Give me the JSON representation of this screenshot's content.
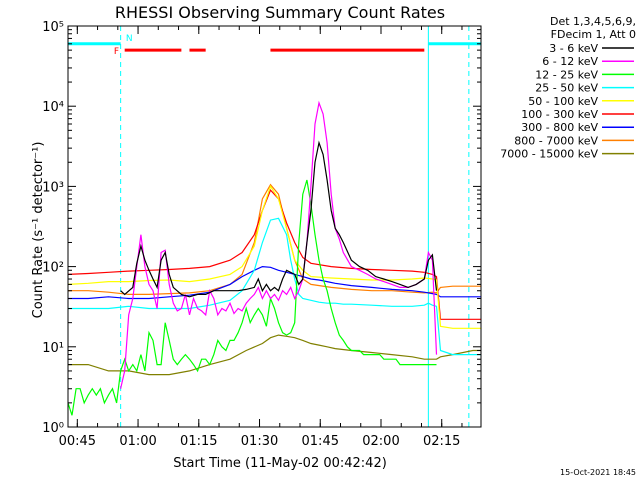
{
  "chart_data": {
    "type": "line",
    "title": "RHESSI Observing Summary Count Rates",
    "xlabel": "Start Time (11-May-02 00:42:42)",
    "ylabel": "Count Rate (s⁻¹ detector⁻¹)",
    "x_unit": "minutes since 00:42:42",
    "xlim": [
      0,
      102
    ],
    "ylim": [
      1,
      100000
    ],
    "yscale": "log",
    "grid": false,
    "legend_position": "right, outside plot",
    "legend_header": [
      "Det 1,3,4,5,6,9,",
      "FDecim 1, Att 0"
    ],
    "x_ticks": [
      {
        "x": 2.3,
        "label": "00:45"
      },
      {
        "x": 17.3,
        "label": "01:00"
      },
      {
        "x": 32.3,
        "label": "01:15"
      },
      {
        "x": 47.3,
        "label": "01:30"
      },
      {
        "x": 62.3,
        "label": "01:45"
      },
      {
        "x": 77.3,
        "label": "02:00"
      },
      {
        "x": 92.3,
        "label": "02:15"
      }
    ],
    "y_ticks": [
      {
        "y": 1,
        "label": "10⁰"
      },
      {
        "y": 10,
        "label": "10¹"
      },
      {
        "y": 100,
        "label": "10²"
      },
      {
        "y": 1000,
        "label": "10³"
      },
      {
        "y": 10000,
        "label": "10⁴"
      },
      {
        "y": 100000,
        "label": "10⁵"
      }
    ],
    "series": [
      {
        "name": "3 - 6 keV",
        "color": "#000000",
        "x": [
          13,
          14,
          16,
          17,
          18,
          19,
          20,
          21,
          22,
          23,
          24,
          25,
          26,
          28,
          30,
          32,
          34,
          36,
          38,
          40,
          42,
          44,
          46,
          47,
          48,
          49,
          50,
          51,
          52,
          53,
          54,
          56,
          57,
          58,
          59,
          60,
          61,
          62,
          63,
          64,
          65,
          66,
          67,
          68,
          70,
          72,
          74,
          76,
          78,
          80,
          82,
          84,
          86,
          88,
          89,
          90,
          91
        ],
        "y": [
          50,
          45,
          55,
          110,
          180,
          120,
          90,
          70,
          55,
          120,
          150,
          80,
          55,
          45,
          42,
          45,
          45,
          50,
          50,
          50,
          50,
          52,
          55,
          70,
          50,
          60,
          50,
          55,
          50,
          70,
          90,
          80,
          60,
          70,
          200,
          500,
          2000,
          3500,
          2500,
          1200,
          500,
          300,
          250,
          200,
          120,
          100,
          90,
          75,
          70,
          65,
          60,
          55,
          60,
          70,
          120,
          140,
          50
        ]
      },
      {
        "name": "6 - 12 keV",
        "color": "#ff00ff",
        "x": [
          13,
          14,
          15,
          16,
          17,
          18,
          19,
          20,
          21,
          22,
          23,
          24,
          25,
          26,
          27,
          28,
          29,
          30,
          31,
          32,
          33,
          34,
          35,
          36,
          37,
          38,
          39,
          40,
          41,
          42,
          43,
          44,
          45,
          46,
          47,
          48,
          49,
          50,
          51,
          52,
          53,
          54,
          55,
          56,
          57,
          58,
          59,
          60,
          61,
          62,
          63,
          64,
          65,
          66,
          67,
          68,
          70,
          72,
          74,
          76,
          78,
          80,
          82,
          84,
          86,
          88,
          89,
          90,
          91
        ],
        "y": [
          3,
          5,
          25,
          40,
          100,
          250,
          100,
          60,
          50,
          30,
          150,
          160,
          60,
          35,
          28,
          30,
          45,
          25,
          40,
          30,
          28,
          25,
          50,
          40,
          25,
          30,
          28,
          35,
          26,
          30,
          28,
          35,
          40,
          45,
          55,
          40,
          50,
          40,
          45,
          38,
          50,
          45,
          55,
          40,
          50,
          70,
          200,
          1000,
          6000,
          11000,
          8000,
          3500,
          800,
          300,
          220,
          150,
          100,
          90,
          80,
          70,
          65,
          60,
          55,
          55,
          60,
          70,
          150,
          120,
          8
        ]
      },
      {
        "name": "12 - 25 keV",
        "color": "#00ff00",
        "x": [
          0,
          1,
          2,
          3,
          4,
          5,
          6,
          7,
          8,
          9,
          10,
          11,
          12,
          13,
          14,
          15,
          16,
          17,
          18,
          19,
          20,
          21,
          22,
          23,
          24,
          25,
          26,
          27,
          28,
          29,
          30,
          31,
          32,
          33,
          34,
          35,
          36,
          37,
          38,
          39,
          40,
          41,
          42,
          43,
          44,
          45,
          46,
          47,
          48,
          49,
          50,
          51,
          52,
          53,
          54,
          55,
          56,
          57,
          58,
          59,
          60,
          61,
          62,
          63,
          64,
          65,
          66,
          67,
          68,
          69,
          70,
          71,
          72,
          73,
          74,
          75,
          76,
          77,
          78,
          79,
          80,
          81,
          82,
          83,
          84,
          85,
          86,
          87,
          88,
          89,
          90,
          91
        ],
        "y": [
          2,
          1.4,
          3,
          3,
          2,
          2.5,
          3,
          2.5,
          3,
          2,
          2.5,
          3,
          2,
          5,
          7,
          5,
          6,
          5,
          8,
          5,
          15,
          12,
          6,
          6,
          20,
          12,
          7,
          6,
          7,
          8,
          7,
          6,
          5,
          7,
          7,
          6,
          8,
          12,
          10,
          9,
          12,
          12,
          15,
          20,
          30,
          20,
          25,
          30,
          25,
          18,
          40,
          30,
          20,
          15,
          14,
          15,
          20,
          200,
          800,
          1200,
          600,
          250,
          120,
          70,
          50,
          30,
          20,
          14,
          12,
          10,
          9,
          9,
          9,
          8,
          8,
          8,
          8,
          8,
          7,
          7,
          7,
          7,
          6,
          6,
          6,
          6,
          6,
          6,
          6,
          6,
          6,
          6
        ]
      },
      {
        "name": "25 - 50 keV",
        "color": "#00ffff",
        "x": [
          0,
          5,
          10,
          15,
          20,
          25,
          30,
          35,
          40,
          43,
          46,
          48,
          50,
          52,
          54,
          55,
          56,
          57,
          58,
          60,
          62,
          64,
          66,
          68,
          70,
          75,
          80,
          85,
          88,
          89,
          90,
          91,
          92,
          95,
          100,
          102
        ],
        "y": [
          30,
          30,
          30,
          32,
          30,
          30,
          30,
          33,
          38,
          50,
          90,
          200,
          380,
          400,
          250,
          120,
          70,
          45,
          40,
          38,
          36,
          35,
          35,
          34,
          34,
          33,
          32,
          32,
          33,
          35,
          33,
          32,
          9,
          8,
          8,
          8
        ]
      },
      {
        "name": "50 - 100 keV",
        "color": "#ffff00",
        "x": [
          0,
          5,
          10,
          15,
          20,
          25,
          30,
          35,
          40,
          43,
          46,
          48,
          50,
          52,
          54,
          56,
          58,
          60,
          65,
          70,
          75,
          80,
          85,
          88,
          90,
          91,
          92,
          95,
          100,
          102
        ],
        "y": [
          60,
          62,
          65,
          65,
          67,
          68,
          65,
          70,
          80,
          100,
          180,
          500,
          1000,
          700,
          300,
          120,
          90,
          75,
          72,
          70,
          68,
          68,
          70,
          72,
          70,
          68,
          18,
          17,
          17,
          17
        ]
      },
      {
        "name": "100 - 300 keV",
        "color": "#ff0000",
        "x": [
          0,
          5,
          10,
          15,
          20,
          25,
          30,
          35,
          40,
          43,
          46,
          48,
          50,
          52,
          54,
          56,
          58,
          60,
          65,
          70,
          75,
          80,
          85,
          88,
          90,
          91,
          92,
          95,
          100,
          102
        ],
        "y": [
          80,
          82,
          85,
          88,
          90,
          92,
          95,
          100,
          120,
          150,
          250,
          500,
          900,
          700,
          350,
          200,
          130,
          110,
          100,
          95,
          92,
          90,
          88,
          85,
          80,
          75,
          22,
          22,
          22,
          22
        ]
      },
      {
        "name": "300 - 800 keV",
        "color": "#0000ff",
        "x": [
          0,
          5,
          10,
          15,
          20,
          25,
          30,
          35,
          40,
          43,
          46,
          48,
          50,
          52,
          54,
          56,
          58,
          60,
          62,
          64,
          66,
          70,
          75,
          80,
          85,
          88,
          90,
          91,
          92,
          95,
          100,
          102
        ],
        "y": [
          40,
          40,
          42,
          40,
          40,
          42,
          44,
          48,
          60,
          75,
          90,
          100,
          98,
          90,
          85,
          80,
          75,
          70,
          68,
          65,
          62,
          58,
          55,
          52,
          50,
          48,
          46,
          45,
          42,
          42,
          42,
          42
        ]
      },
      {
        "name": "800 - 7000 keV",
        "color": "#ff7f00",
        "x": [
          0,
          5,
          10,
          15,
          20,
          25,
          30,
          35,
          40,
          43,
          46,
          48,
          50,
          52,
          54,
          56,
          58,
          60,
          65,
          70,
          75,
          80,
          85,
          88,
          90,
          91,
          92,
          95,
          100,
          102
        ],
        "y": [
          50,
          50,
          48,
          45,
          45,
          46,
          47,
          50,
          60,
          80,
          200,
          700,
          1050,
          800,
          300,
          120,
          70,
          60,
          55,
          52,
          50,
          50,
          48,
          47,
          48,
          47,
          55,
          57,
          57,
          57
        ]
      },
      {
        "name": "7000 - 15000 keV",
        "color": "#808000",
        "x": [
          0,
          5,
          10,
          15,
          20,
          25,
          30,
          35,
          40,
          44,
          48,
          50,
          52,
          54,
          56,
          58,
          60,
          62,
          64,
          66,
          70,
          75,
          80,
          85,
          88,
          90,
          91,
          92,
          95,
          100,
          102
        ],
        "y": [
          6,
          6,
          5,
          5,
          4.5,
          4.5,
          5,
          6,
          7,
          9,
          11,
          13,
          14,
          13.5,
          13,
          12,
          11,
          10.5,
          10,
          9.5,
          9,
          8.5,
          8,
          7.5,
          7,
          7,
          7,
          7.5,
          8,
          9,
          9
        ]
      }
    ],
    "annotations": [
      {
        "text": "N",
        "color": "#00ffff"
      },
      {
        "text": "F",
        "color": "#ff0000"
      }
    ],
    "cyan_segments": [
      [
        0,
        13
      ],
      [
        89,
        102
      ]
    ],
    "cyan_verticals": [
      13,
      89,
      99
    ],
    "flag_segments": [
      [
        14,
        28
      ],
      [
        30,
        34
      ],
      [
        50,
        88
      ]
    ]
  },
  "footer": {
    "timestamp": "15-Oct-2021 18:45"
  }
}
